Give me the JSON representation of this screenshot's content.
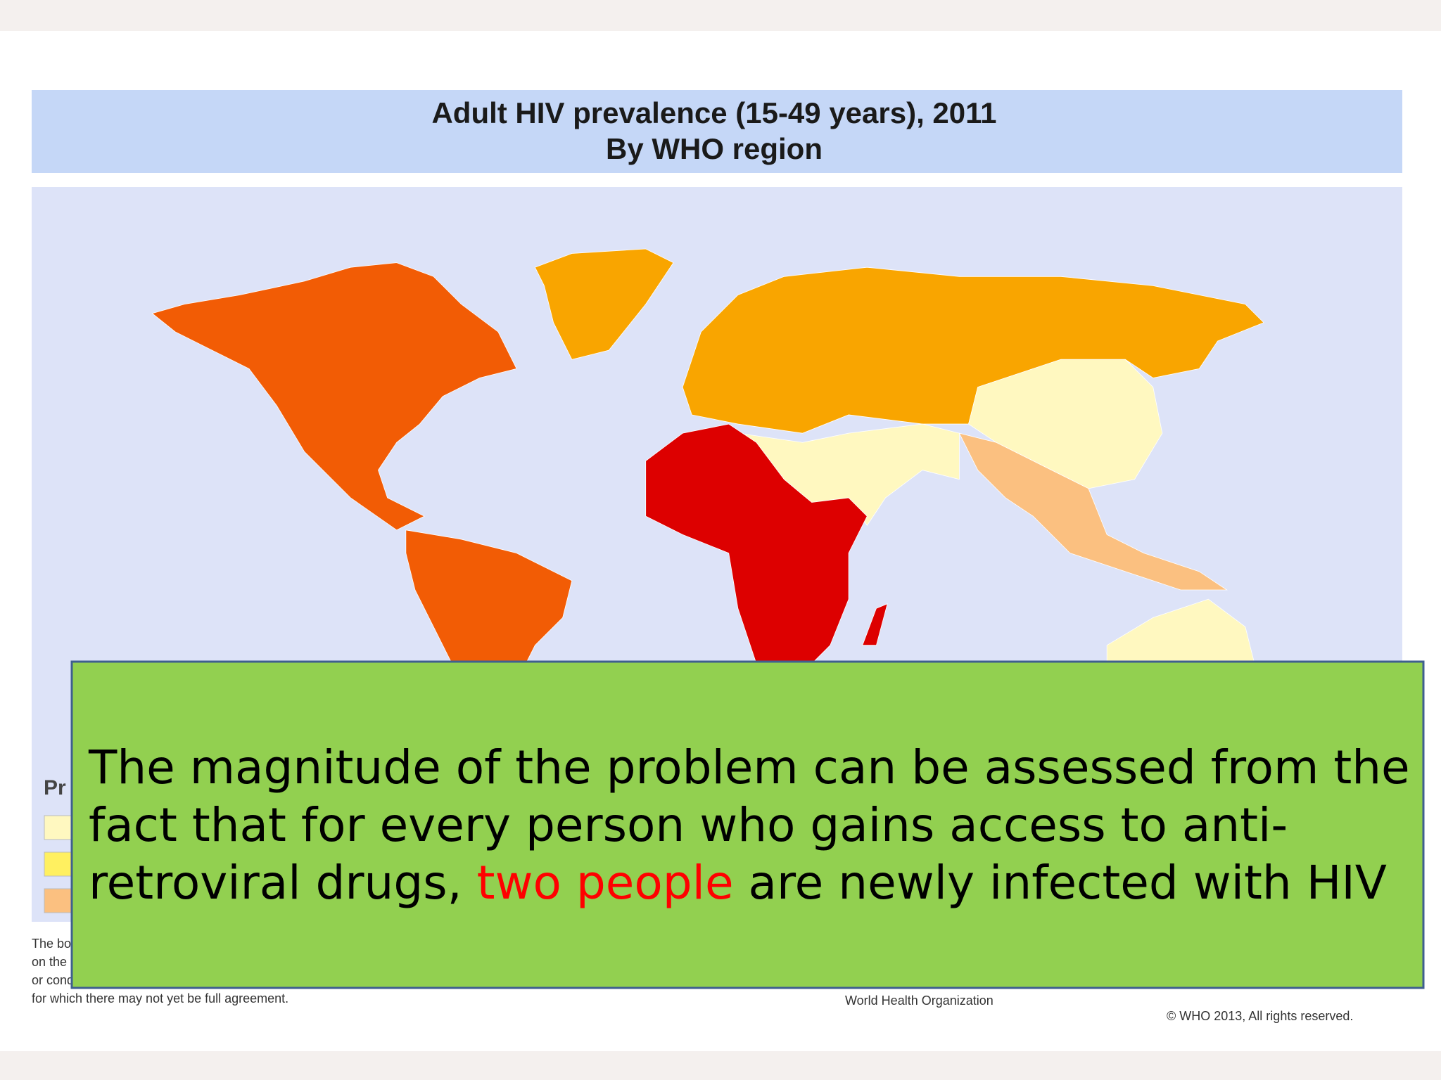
{
  "map": {
    "title": "Adult HIV prevalence (15-49 years), 2011",
    "subtitle": "By WHO region",
    "legend_title": "Pr"
  },
  "footer": {
    "notes": [
      "The bo",
      "on the",
      "or cond",
      "for which there may not yet be full agreement."
    ],
    "source": "World Health Organization",
    "copyright": "© WHO 2013, All rights reserved."
  },
  "overlay": {
    "lines": [
      "The magnitude of the problem can be assessed from the",
      "fact that for every person who gains access to anti-"
    ],
    "last_line": [
      "retroviral drugs, ",
      "two people",
      " are newly infected with HIV"
    ]
  }
}
